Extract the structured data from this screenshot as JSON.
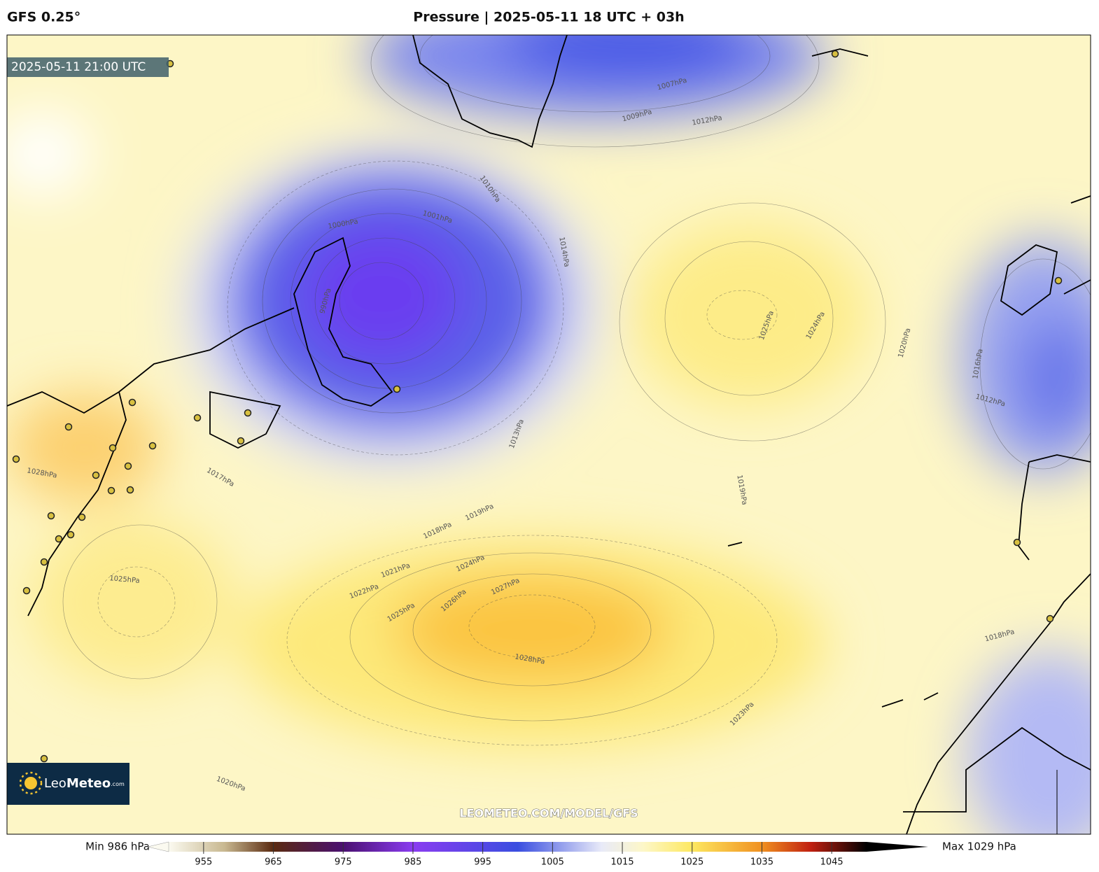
{
  "header": {
    "model": "GFS 0.25°",
    "title": "Pressure | 2025-05-11 18 UTC + 03h"
  },
  "map": {
    "valid_time": "2025-05-11 21:00 UTC",
    "watermark": "LEOMETEO.COM/MODEL/GFS",
    "isobar_labels": [
      "1025hPa",
      "1024hPa",
      "1028hPa",
      "1027hPa",
      "1026hPa",
      "1025hPa",
      "1024hPa",
      "1023hPa",
      "1020hPa",
      "1019hPa",
      "1018hPa",
      "1016hPa",
      "1012hPa",
      "1013hPa",
      "1014hPa",
      "1010hPa",
      "1007hPa",
      "1009hPa",
      "1012hPa",
      "1020hPa",
      "1025hPa",
      "1017hPa",
      "1019hPa",
      "1018hPa",
      "1021hPa",
      "1022hPa",
      "1001hPa",
      "1000hPa",
      "990hPa",
      "1028hPa"
    ]
  },
  "logo": {
    "name_light": "Leo",
    "name_bold": "Meteo",
    "suffix": ".com"
  },
  "colorbar": {
    "min_label": "Min 986 hPa",
    "max_label": "Max 1029 hPa",
    "range": [
      950,
      1050
    ],
    "ticks": [
      955,
      965,
      975,
      985,
      995,
      1005,
      1015,
      1025,
      1035,
      1045
    ]
  }
}
